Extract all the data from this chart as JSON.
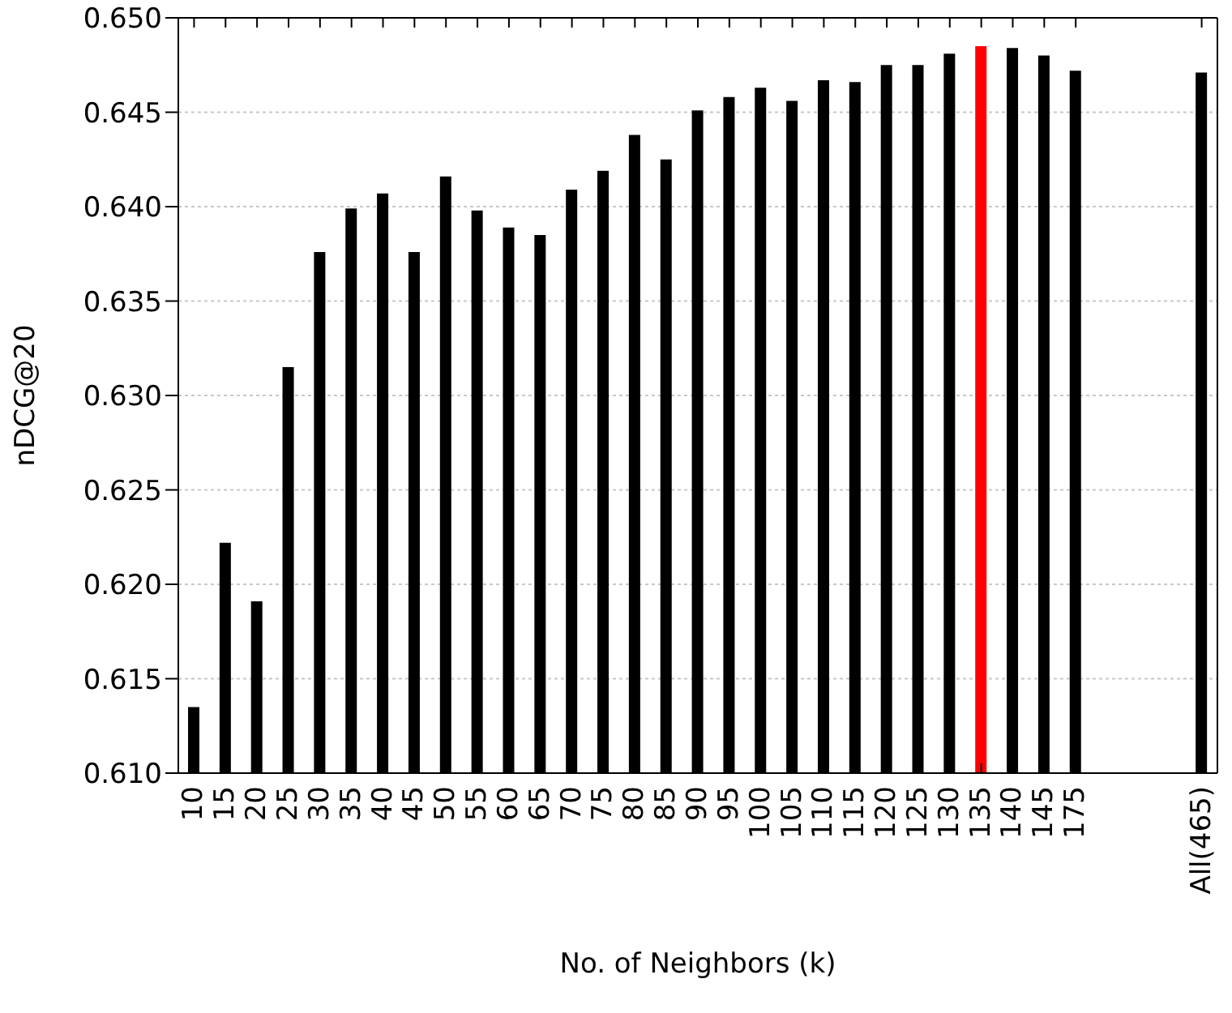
{
  "chart_data": {
    "type": "bar",
    "xlabel": "No. of Neighbors (k)",
    "ylabel": "nDCG@20",
    "categories": [
      "10",
      "15",
      "20",
      "25",
      "30",
      "35",
      "40",
      "45",
      "50",
      "55",
      "60",
      "65",
      "70",
      "75",
      "80",
      "85",
      "90",
      "95",
      "100",
      "105",
      "110",
      "115",
      "120",
      "125",
      "130",
      "135",
      "140",
      "145",
      "175",
      null,
      null,
      null,
      "All(465)"
    ],
    "values": [
      0.6135,
      0.6222,
      0.6191,
      0.6315,
      0.6376,
      0.6399,
      0.6407,
      0.6376,
      0.6416,
      0.6398,
      0.6389,
      0.6385,
      0.6409,
      0.6419,
      0.6438,
      0.6425,
      0.6451,
      0.6458,
      0.6463,
      0.6456,
      0.6467,
      0.6466,
      0.6475,
      0.6475,
      0.6481,
      0.6485,
      0.6484,
      0.648,
      0.6472,
      null,
      null,
      null,
      0.6471
    ],
    "colors": [
      "#000000",
      "#000000",
      "#000000",
      "#000000",
      "#000000",
      "#000000",
      "#000000",
      "#000000",
      "#000000",
      "#000000",
      "#000000",
      "#000000",
      "#000000",
      "#000000",
      "#000000",
      "#000000",
      "#000000",
      "#000000",
      "#000000",
      "#000000",
      "#000000",
      "#000000",
      "#000000",
      "#000000",
      "#000000",
      "#ff0000",
      "#000000",
      "#000000",
      "#000000",
      "#000000",
      "#000000",
      "#000000",
      "#000000"
    ],
    "ylim": [
      0.61,
      0.65
    ],
    "yticks": [
      {
        "value": 0.61,
        "label": "0.610"
      },
      0.615,
      {
        "value": 0.62,
        "label": "0.620"
      },
      0.625,
      {
        "value": 0.63,
        "label": "0.630"
      },
      0.635,
      {
        "value": 0.64,
        "label": "0.640"
      },
      0.645,
      {
        "value": 0.65,
        "label": "0.650"
      }
    ],
    "grid": "y"
  }
}
